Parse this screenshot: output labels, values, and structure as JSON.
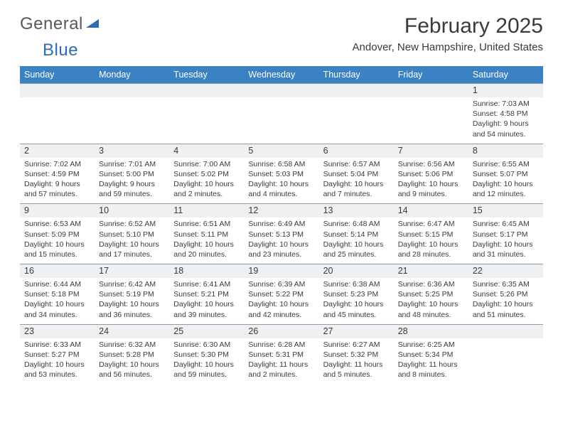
{
  "logo": {
    "word1": "General",
    "word2": "Blue"
  },
  "title": "February 2025",
  "location": "Andover, New Hampshire, United States",
  "header_bg": "#3a82c4",
  "daynum_bg": "#eef0f2",
  "border_color": "#8a9db0",
  "days_of_week": [
    "Sunday",
    "Monday",
    "Tuesday",
    "Wednesday",
    "Thursday",
    "Friday",
    "Saturday"
  ],
  "weeks": [
    [
      {
        "n": "",
        "sr": "",
        "ss": "",
        "d1": "",
        "d2": ""
      },
      {
        "n": "",
        "sr": "",
        "ss": "",
        "d1": "",
        "d2": ""
      },
      {
        "n": "",
        "sr": "",
        "ss": "",
        "d1": "",
        "d2": ""
      },
      {
        "n": "",
        "sr": "",
        "ss": "",
        "d1": "",
        "d2": ""
      },
      {
        "n": "",
        "sr": "",
        "ss": "",
        "d1": "",
        "d2": ""
      },
      {
        "n": "",
        "sr": "",
        "ss": "",
        "d1": "",
        "d2": ""
      },
      {
        "n": "1",
        "sr": "Sunrise: 7:03 AM",
        "ss": "Sunset: 4:58 PM",
        "d1": "Daylight: 9 hours",
        "d2": "and 54 minutes."
      }
    ],
    [
      {
        "n": "2",
        "sr": "Sunrise: 7:02 AM",
        "ss": "Sunset: 4:59 PM",
        "d1": "Daylight: 9 hours",
        "d2": "and 57 minutes."
      },
      {
        "n": "3",
        "sr": "Sunrise: 7:01 AM",
        "ss": "Sunset: 5:00 PM",
        "d1": "Daylight: 9 hours",
        "d2": "and 59 minutes."
      },
      {
        "n": "4",
        "sr": "Sunrise: 7:00 AM",
        "ss": "Sunset: 5:02 PM",
        "d1": "Daylight: 10 hours",
        "d2": "and 2 minutes."
      },
      {
        "n": "5",
        "sr": "Sunrise: 6:58 AM",
        "ss": "Sunset: 5:03 PM",
        "d1": "Daylight: 10 hours",
        "d2": "and 4 minutes."
      },
      {
        "n": "6",
        "sr": "Sunrise: 6:57 AM",
        "ss": "Sunset: 5:04 PM",
        "d1": "Daylight: 10 hours",
        "d2": "and 7 minutes."
      },
      {
        "n": "7",
        "sr": "Sunrise: 6:56 AM",
        "ss": "Sunset: 5:06 PM",
        "d1": "Daylight: 10 hours",
        "d2": "and 9 minutes."
      },
      {
        "n": "8",
        "sr": "Sunrise: 6:55 AM",
        "ss": "Sunset: 5:07 PM",
        "d1": "Daylight: 10 hours",
        "d2": "and 12 minutes."
      }
    ],
    [
      {
        "n": "9",
        "sr": "Sunrise: 6:53 AM",
        "ss": "Sunset: 5:09 PM",
        "d1": "Daylight: 10 hours",
        "d2": "and 15 minutes."
      },
      {
        "n": "10",
        "sr": "Sunrise: 6:52 AM",
        "ss": "Sunset: 5:10 PM",
        "d1": "Daylight: 10 hours",
        "d2": "and 17 minutes."
      },
      {
        "n": "11",
        "sr": "Sunrise: 6:51 AM",
        "ss": "Sunset: 5:11 PM",
        "d1": "Daylight: 10 hours",
        "d2": "and 20 minutes."
      },
      {
        "n": "12",
        "sr": "Sunrise: 6:49 AM",
        "ss": "Sunset: 5:13 PM",
        "d1": "Daylight: 10 hours",
        "d2": "and 23 minutes."
      },
      {
        "n": "13",
        "sr": "Sunrise: 6:48 AM",
        "ss": "Sunset: 5:14 PM",
        "d1": "Daylight: 10 hours",
        "d2": "and 25 minutes."
      },
      {
        "n": "14",
        "sr": "Sunrise: 6:47 AM",
        "ss": "Sunset: 5:15 PM",
        "d1": "Daylight: 10 hours",
        "d2": "and 28 minutes."
      },
      {
        "n": "15",
        "sr": "Sunrise: 6:45 AM",
        "ss": "Sunset: 5:17 PM",
        "d1": "Daylight: 10 hours",
        "d2": "and 31 minutes."
      }
    ],
    [
      {
        "n": "16",
        "sr": "Sunrise: 6:44 AM",
        "ss": "Sunset: 5:18 PM",
        "d1": "Daylight: 10 hours",
        "d2": "and 34 minutes."
      },
      {
        "n": "17",
        "sr": "Sunrise: 6:42 AM",
        "ss": "Sunset: 5:19 PM",
        "d1": "Daylight: 10 hours",
        "d2": "and 36 minutes."
      },
      {
        "n": "18",
        "sr": "Sunrise: 6:41 AM",
        "ss": "Sunset: 5:21 PM",
        "d1": "Daylight: 10 hours",
        "d2": "and 39 minutes."
      },
      {
        "n": "19",
        "sr": "Sunrise: 6:39 AM",
        "ss": "Sunset: 5:22 PM",
        "d1": "Daylight: 10 hours",
        "d2": "and 42 minutes."
      },
      {
        "n": "20",
        "sr": "Sunrise: 6:38 AM",
        "ss": "Sunset: 5:23 PM",
        "d1": "Daylight: 10 hours",
        "d2": "and 45 minutes."
      },
      {
        "n": "21",
        "sr": "Sunrise: 6:36 AM",
        "ss": "Sunset: 5:25 PM",
        "d1": "Daylight: 10 hours",
        "d2": "and 48 minutes."
      },
      {
        "n": "22",
        "sr": "Sunrise: 6:35 AM",
        "ss": "Sunset: 5:26 PM",
        "d1": "Daylight: 10 hours",
        "d2": "and 51 minutes."
      }
    ],
    [
      {
        "n": "23",
        "sr": "Sunrise: 6:33 AM",
        "ss": "Sunset: 5:27 PM",
        "d1": "Daylight: 10 hours",
        "d2": "and 53 minutes."
      },
      {
        "n": "24",
        "sr": "Sunrise: 6:32 AM",
        "ss": "Sunset: 5:28 PM",
        "d1": "Daylight: 10 hours",
        "d2": "and 56 minutes."
      },
      {
        "n": "25",
        "sr": "Sunrise: 6:30 AM",
        "ss": "Sunset: 5:30 PM",
        "d1": "Daylight: 10 hours",
        "d2": "and 59 minutes."
      },
      {
        "n": "26",
        "sr": "Sunrise: 6:28 AM",
        "ss": "Sunset: 5:31 PM",
        "d1": "Daylight: 11 hours",
        "d2": "and 2 minutes."
      },
      {
        "n": "27",
        "sr": "Sunrise: 6:27 AM",
        "ss": "Sunset: 5:32 PM",
        "d1": "Daylight: 11 hours",
        "d2": "and 5 minutes."
      },
      {
        "n": "28",
        "sr": "Sunrise: 6:25 AM",
        "ss": "Sunset: 5:34 PM",
        "d1": "Daylight: 11 hours",
        "d2": "and 8 minutes."
      },
      {
        "n": "",
        "sr": "",
        "ss": "",
        "d1": "",
        "d2": ""
      }
    ]
  ]
}
